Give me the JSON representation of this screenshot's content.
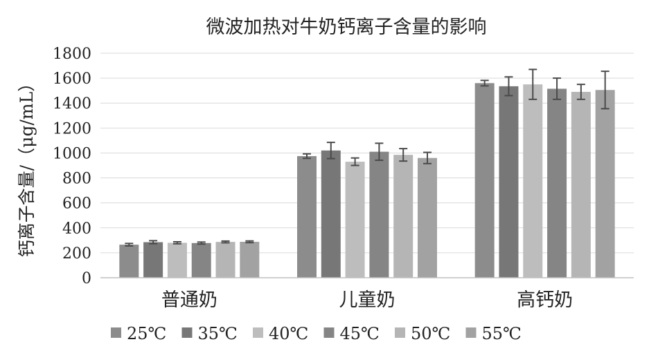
{
  "chart_data": {
    "type": "bar",
    "title": "微波加热对牛奶钙离子含量的影响",
    "xlabel": "",
    "ylabel": "钙离子含量/（μg/mL）",
    "ylim": [
      0,
      1800
    ],
    "yticks": [
      0,
      200,
      400,
      600,
      800,
      1000,
      1200,
      1400,
      1600,
      1800
    ],
    "grid": true,
    "legend_position": "bottom",
    "categories": [
      "普通奶",
      "儿童奶",
      "高钙奶"
    ],
    "series": [
      {
        "name": "25℃",
        "color": "#8c8c8c",
        "values": [
          265,
          975,
          1560
        ],
        "errors": [
          10,
          18,
          22
        ]
      },
      {
        "name": "35℃",
        "color": "#777777",
        "values": [
          285,
          1020,
          1535
        ],
        "errors": [
          12,
          65,
          75
        ]
      },
      {
        "name": "40℃",
        "color": "#bdbdbd",
        "values": [
          280,
          930,
          1550
        ],
        "errors": [
          8,
          30,
          120
        ]
      },
      {
        "name": "45℃",
        "color": "#858585",
        "values": [
          278,
          1010,
          1515
        ],
        "errors": [
          8,
          68,
          85
        ]
      },
      {
        "name": "50℃",
        "color": "#b5b5b5",
        "values": [
          287,
          985,
          1490
        ],
        "errors": [
          7,
          50,
          60
        ]
      },
      {
        "name": "55℃",
        "color": "#a2a2a2",
        "values": [
          288,
          960,
          1505
        ],
        "errors": [
          7,
          45,
          150
        ]
      }
    ]
  }
}
